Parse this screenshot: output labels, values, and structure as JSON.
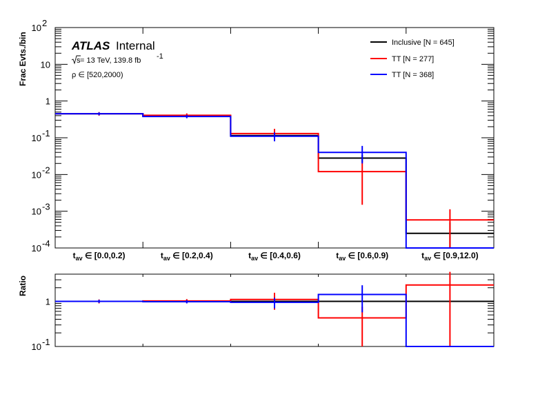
{
  "chart_data": [
    {
      "type": "histogram",
      "ylabel": "Frac Evts./bin",
      "yscale": "log",
      "ylim": [
        0.0001,
        100
      ],
      "categories": [
        "[0.0,0.2)",
        "[0.2,0.4)",
        "[0.4,0.6)",
        "[0.6,0.9)",
        "[0.9,12.0)"
      ],
      "category_prefix": "t",
      "category_prefix_sub": "av",
      "category_set_symbol": "∈",
      "series": [
        {
          "name": "Inclusive [N = 645]",
          "color": "#000000",
          "values": [
            0.45,
            0.39,
            0.115,
            0.028,
            0.00025
          ],
          "errors": [
            0.03,
            0.03,
            0.015,
            0.006,
            0.00025
          ]
        },
        {
          "name": "TT [N = 277]",
          "color": "#ff0000",
          "values": [
            0.45,
            0.41,
            0.13,
            0.012,
            0.00058
          ],
          "errors": [
            0.05,
            0.05,
            0.045,
            0.0105,
            0.00055
          ]
        },
        {
          "name": "TT [N = 368]",
          "color": "#0000ff",
          "values": [
            0.45,
            0.38,
            0.11,
            0.04,
            0.0001
          ],
          "errors": [
            0.04,
            0.04,
            0.03,
            0.02,
            0
          ]
        }
      ],
      "y_tick_labels": [
        {
          "base": "10",
          "exp": "-4",
          "value": 0.0001
        },
        {
          "base": "10",
          "exp": "-3",
          "value": 0.001
        },
        {
          "base": "10",
          "exp": "-2",
          "value": 0.01
        },
        {
          "base": "10",
          "exp": "-1",
          "value": 0.1
        },
        {
          "base": "1",
          "exp": "",
          "value": 1
        },
        {
          "base": "10",
          "exp": "",
          "value": 10
        },
        {
          "base": "10",
          "exp": "2",
          "value": 100
        }
      ],
      "legend_position": "top-right"
    },
    {
      "type": "ratio",
      "ylabel": "Ratio",
      "yscale": "log",
      "ylim": [
        0.1,
        4
      ],
      "y_tick_labels": [
        {
          "base": "10",
          "exp": "-1",
          "value": 0.1
        },
        {
          "base": "1",
          "exp": "",
          "value": 1
        }
      ],
      "series": [
        {
          "name": "Inclusive",
          "color": "#000000",
          "values": [
            1.0,
            1.0,
            1.0,
            1.0,
            1.0
          ],
          "errors": [
            0,
            0,
            0,
            0,
            0
          ]
        },
        {
          "name": "TT [N = 277]",
          "color": "#ff0000",
          "values": [
            1.0,
            1.02,
            1.1,
            0.43,
            2.3
          ],
          "errors": [
            0.1,
            0.1,
            0.45,
            0.33,
            2.2
          ]
        },
        {
          "name": "TT [N = 368]",
          "color": "#0000ff",
          "values": [
            1.0,
            0.98,
            0.95,
            1.42,
            0.1
          ],
          "errors": [
            0.08,
            0.08,
            0.25,
            0.85,
            0
          ]
        }
      ]
    }
  ],
  "labels": {
    "experiment": "ATLAS",
    "status": "Internal",
    "energy_sqrt": "s",
    "energy_text": " = 13 TeV, 139.8 fb",
    "lumi_exp": "-1",
    "selection": "ρ ∈ [520,2000)"
  }
}
